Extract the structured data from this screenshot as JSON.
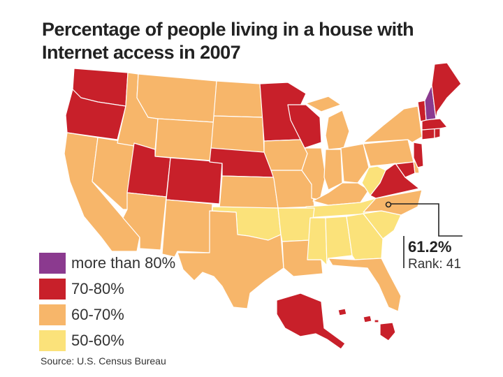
{
  "title_line1": "Percentage of people living in a house with",
  "title_line2": "Internet access in 2007",
  "legend": [
    {
      "label": "more than 80%",
      "color": "#8b3a8f"
    },
    {
      "label": "70-80%",
      "color": "#c8202a"
    },
    {
      "label": "60-70%",
      "color": "#f7b66a"
    },
    {
      "label": "50-60%",
      "color": "#fbe27a"
    }
  ],
  "callout": {
    "value": "61.2%",
    "rank": "Rank: 41"
  },
  "source": "Source: U.S. Census Bureau",
  "map_data": {
    "categories": {
      "more than 80%": [
        "NH"
      ],
      "70-80%": [
        "WA",
        "OR",
        "UT",
        "CO",
        "NE",
        "MN",
        "WI",
        "VA",
        "MD",
        "NJ",
        "CT",
        "RI",
        "MA",
        "VT",
        "ME",
        "AK",
        "HI"
      ],
      "60-70%": [
        "CA",
        "NV",
        "ID",
        "MT",
        "WY",
        "ND",
        "SD",
        "AZ",
        "NM",
        "TX",
        "KS",
        "IA",
        "MO",
        "IL",
        "IN",
        "MI",
        "OH",
        "PA",
        "NY",
        "KY",
        "NC",
        "LA",
        "FL",
        "DE"
      ],
      "50-60%": [
        "OK",
        "AR",
        "TN",
        "MS",
        "AL",
        "GA",
        "SC",
        "WV"
      ]
    },
    "highlighted_state": "NC"
  }
}
